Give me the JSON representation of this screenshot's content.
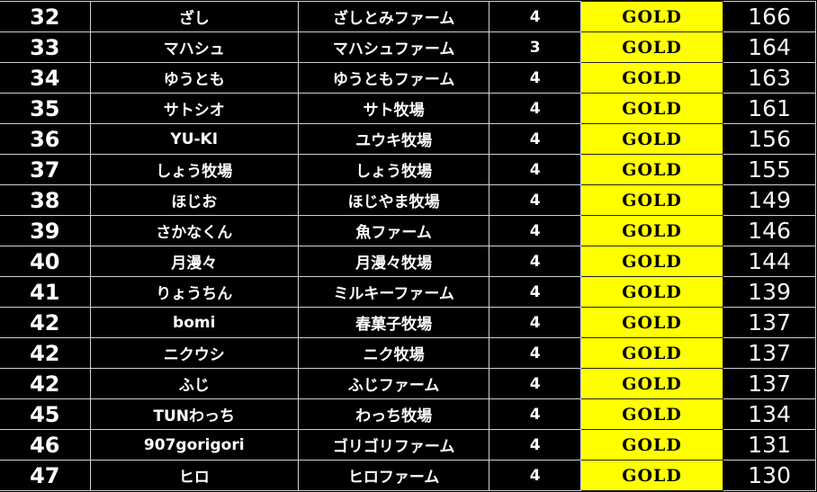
{
  "colors": {
    "grade_bg": "#ffff00",
    "background": "#000000",
    "grid": "#d0d0d0"
  },
  "rows": [
    {
      "rank": "32",
      "name": "ざし",
      "farm": "ざしとみファーム",
      "num": "4",
      "grade": "GOLD",
      "score": "166"
    },
    {
      "rank": "33",
      "name": "マハシュ",
      "farm": "マハシュファーム",
      "num": "3",
      "grade": "GOLD",
      "score": "164"
    },
    {
      "rank": "34",
      "name": "ゆうとも",
      "farm": "ゆうともファーム",
      "num": "4",
      "grade": "GOLD",
      "score": "163"
    },
    {
      "rank": "35",
      "name": "サトシオ",
      "farm": "サト牧場",
      "num": "4",
      "grade": "GOLD",
      "score": "161"
    },
    {
      "rank": "36",
      "name": "YU-KI",
      "farm": "ユウキ牧場",
      "num": "4",
      "grade": "GOLD",
      "score": "156"
    },
    {
      "rank": "37",
      "name": "しょう牧場",
      "farm": "しょう牧場",
      "num": "4",
      "grade": "GOLD",
      "score": "155"
    },
    {
      "rank": "38",
      "name": "ほじお",
      "farm": "ほじやま牧場",
      "num": "4",
      "grade": "GOLD",
      "score": "149"
    },
    {
      "rank": "39",
      "name": "さかなくん",
      "farm": "魚ファーム",
      "num": "4",
      "grade": "GOLD",
      "score": "146"
    },
    {
      "rank": "40",
      "name": "月漫々",
      "farm": "月漫々牧場",
      "num": "4",
      "grade": "GOLD",
      "score": "144"
    },
    {
      "rank": "41",
      "name": "りょうちん",
      "farm": "ミルキーファーム",
      "num": "4",
      "grade": "GOLD",
      "score": "139"
    },
    {
      "rank": "42",
      "name": "bomi",
      "farm": "春菓子牧場",
      "num": "4",
      "grade": "GOLD",
      "score": "137"
    },
    {
      "rank": "42",
      "name": "ニクウシ",
      "farm": "ニク牧場",
      "num": "4",
      "grade": "GOLD",
      "score": "137"
    },
    {
      "rank": "42",
      "name": "ふじ",
      "farm": "ふじファーム",
      "num": "4",
      "grade": "GOLD",
      "score": "137"
    },
    {
      "rank": "45",
      "name": "TUNわっち",
      "farm": "わっち牧場",
      "num": "4",
      "grade": "GOLD",
      "score": "134"
    },
    {
      "rank": "46",
      "name": "907gorigori",
      "farm": "ゴリゴリファーム",
      "num": "4",
      "grade": "GOLD",
      "score": "131"
    },
    {
      "rank": "47",
      "name": "ヒロ",
      "farm": "ヒロファーム",
      "num": "4",
      "grade": "GOLD",
      "score": "130"
    }
  ]
}
